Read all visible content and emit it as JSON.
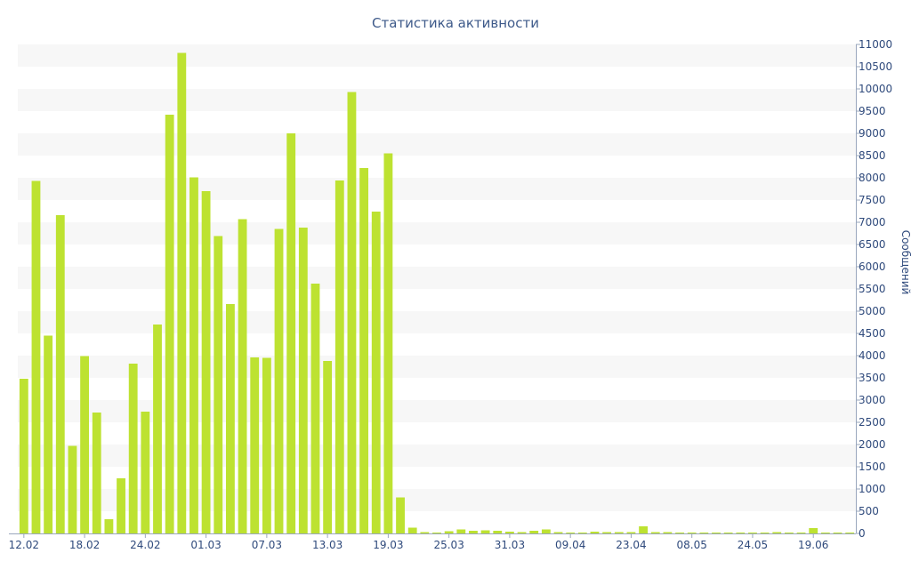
{
  "chart_data": {
    "type": "bar",
    "title": "Статистика активности",
    "ylabel": "Сообщений",
    "xlabel": "",
    "ylim": [
      0,
      11000
    ],
    "y_ticks": [
      0,
      500,
      1000,
      1500,
      2000,
      2500,
      3000,
      3500,
      4000,
      4500,
      5000,
      5500,
      6000,
      6500,
      7000,
      7500,
      8000,
      8500,
      9000,
      9500,
      10000,
      10500,
      11000
    ],
    "y_axis_side": "right",
    "grid": "alternating horizontal bands",
    "bar_color": "#bde231",
    "band_color": "#f7f7f7",
    "text_color": "#2f4a7c",
    "x_tick_labels": [
      {
        "index": 0,
        "label": "12.02"
      },
      {
        "index": 5,
        "label": "18.02"
      },
      {
        "index": 10,
        "label": "24.02"
      },
      {
        "index": 15,
        "label": "01.03"
      },
      {
        "index": 20,
        "label": "07.03"
      },
      {
        "index": 25,
        "label": "13.03"
      },
      {
        "index": 30,
        "label": "19.03"
      },
      {
        "index": 35,
        "label": "25.03"
      },
      {
        "index": 40,
        "label": "31.03"
      },
      {
        "index": 45,
        "label": "09.04"
      },
      {
        "index": 50,
        "label": "23.04"
      },
      {
        "index": 55,
        "label": "08.05"
      },
      {
        "index": 60,
        "label": "24.05"
      },
      {
        "index": 65,
        "label": "19.06"
      }
    ],
    "values": [
      3480,
      7930,
      4450,
      7160,
      1970,
      3990,
      2720,
      320,
      1240,
      3820,
      2740,
      4700,
      9420,
      10810,
      8010,
      7700,
      6690,
      5160,
      7070,
      3960,
      3950,
      6850,
      9000,
      6880,
      5620,
      3880,
      7940,
      9930,
      8220,
      7240,
      8550,
      810,
      130,
      30,
      20,
      50,
      90,
      60,
      70,
      60,
      40,
      30,
      60,
      90,
      30,
      20,
      20,
      40,
      30,
      30,
      30,
      160,
      30,
      30,
      20,
      20,
      20,
      20,
      20,
      20,
      20,
      20,
      30,
      20,
      20,
      120,
      20,
      20,
      20
    ]
  }
}
